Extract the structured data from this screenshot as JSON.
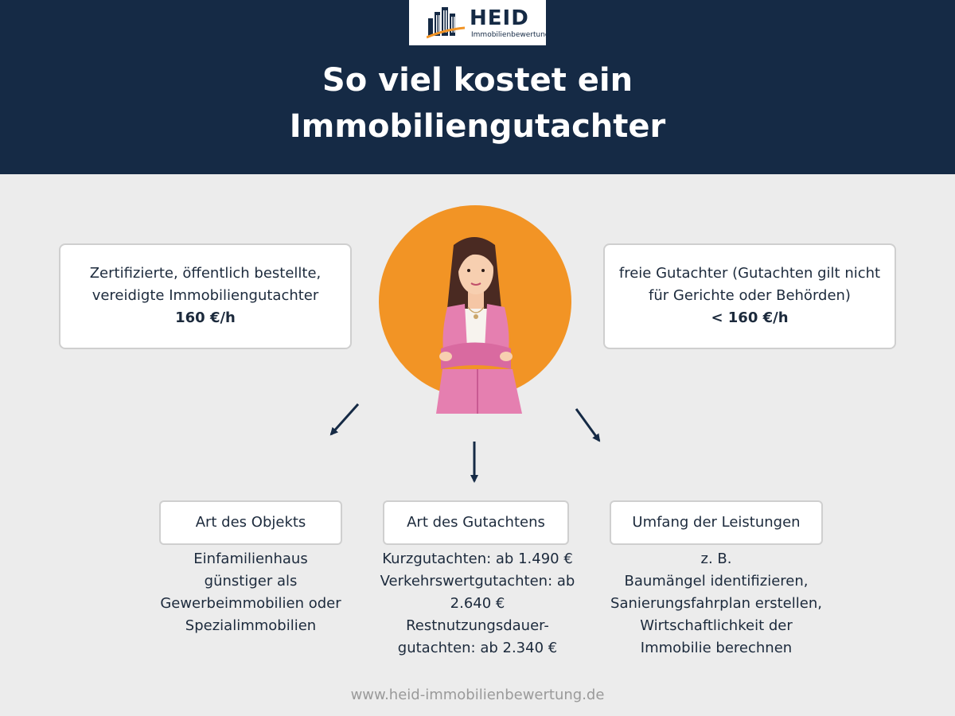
{
  "logo": {
    "name": "HEID",
    "subtitle": "Immobilienbewertung"
  },
  "title": {
    "line1": "So viel kostet ein",
    "line2": "Immobiliengutachter"
  },
  "colors": {
    "header_bg": "#152a45",
    "accent_orange": "#f29425",
    "jacket_pink": "#e57fb0",
    "page_bg": "#ececec"
  },
  "left_card": {
    "line1": "Zertifizierte, öffentlich bestellte,",
    "line2": "vereidigte Immobiliengutachter",
    "price": "160 €/h"
  },
  "right_card": {
    "line1": "freie Gutachter (Gutachten gilt nicht",
    "line2": "für Gerichte oder Behörden)",
    "price": "< 160 €/h"
  },
  "factors": [
    {
      "label": "Art des Objekts",
      "lines": [
        "Einfamilienhaus",
        "günstiger als",
        "Gewerbeimmobilien oder",
        "Spezialimmobilien"
      ]
    },
    {
      "label": "Art des Gutachtens",
      "lines": [
        "Kurzgutachten: ab 1.490 €",
        "Verkehrswertgutachten: ab",
        "2.640 €",
        "Restnutzungsdauer-",
        "gutachten: ab 2.340 €"
      ]
    },
    {
      "label": "Umfang der Leistungen",
      "lines": [
        "z. B.",
        "Baumängel identifizieren,",
        "Sanierungsfahrplan erstellen,",
        "Wirtschaftlichkeit der",
        "Immobilie berechnen"
      ]
    }
  ],
  "footer": {
    "url": "www.heid-immobilienbewertung.de"
  }
}
